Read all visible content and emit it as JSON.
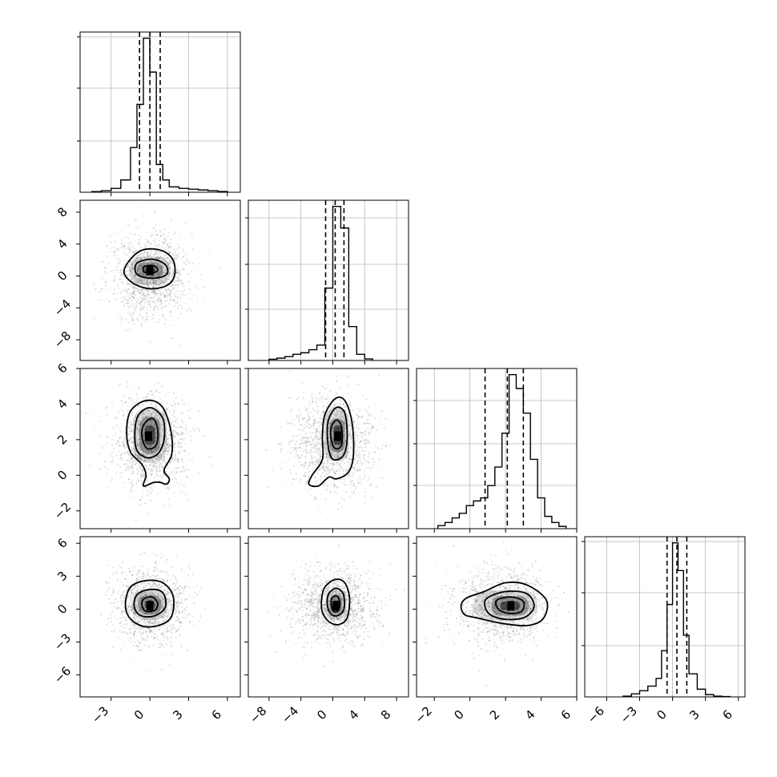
{
  "chart_data": {
    "type": "corner",
    "n_params": 4,
    "grid": true,
    "parameters": [
      {
        "range": [
          -5.4,
          7.0
        ],
        "ticks": [
          -3,
          0,
          3,
          6
        ],
        "tick_labels": [
          "−3",
          "0",
          "3",
          "6"
        ],
        "hist_bins": [
          -4.5,
          -3.75,
          -3.0,
          -2.25,
          -1.5,
          -1.0,
          -0.5,
          0.0,
          0.5,
          1.0,
          1.5,
          2.25,
          3.0,
          3.75,
          4.5,
          5.25,
          6.0
        ],
        "hist_counts": [
          0.4,
          1.0,
          2.5,
          8,
          29,
          57,
          100,
          78,
          18,
          8,
          3.5,
          2.5,
          2,
          1.5,
          1,
          0.5
        ],
        "quantiles": [
          -0.8,
          0.0,
          0.8
        ],
        "hist_ylim": [
          0,
          104
        ],
        "hist_grid": [
          0.32,
          0.65,
          0.97
        ]
      },
      {
        "range": [
          -10.6,
          9.5
        ],
        "ticks": [
          -8,
          -4,
          0,
          4,
          8
        ],
        "tick_labels": [
          "−8",
          "−4",
          "0",
          "4",
          "8"
        ],
        "hist_bins": [
          -8.0,
          -7.0,
          -6.0,
          -5.0,
          -4.0,
          -3.0,
          -2.0,
          -1.0,
          0.0,
          1.0,
          2.0,
          3.0,
          4.0,
          5.0
        ],
        "hist_counts": [
          0.8,
          1.5,
          2.5,
          4,
          5,
          7,
          10,
          47,
          100,
          86,
          22,
          4,
          1
        ],
        "quantiles": [
          -0.9,
          0.3,
          1.4
        ],
        "hist_ylim": [
          0,
          104
        ],
        "hist_grid": [
          0.32,
          0.6,
          0.89
        ]
      },
      {
        "range": [
          -3.0,
          6.0
        ],
        "ticks": [
          -2,
          0,
          2,
          4,
          6
        ],
        "tick_labels": [
          "−2",
          "0",
          "2",
          "4",
          "6"
        ],
        "hist_bins": [
          -1.8,
          -1.4,
          -1.0,
          -0.6,
          -0.2,
          0.2,
          0.6,
          1.0,
          1.4,
          1.8,
          2.2,
          2.6,
          3.0,
          3.4,
          3.8,
          4.2,
          4.6,
          5.0,
          5.4
        ],
        "hist_counts": [
          2,
          4,
          7,
          10,
          15,
          18,
          20,
          28,
          40,
          62,
          100,
          91,
          75,
          45,
          20,
          8,
          4,
          1.5
        ],
        "quantiles": [
          0.85,
          2.1,
          3.0
        ],
        "hist_ylim": [
          0,
          104
        ],
        "hist_grid": [
          0.27,
          0.53,
          0.8
        ]
      },
      {
        "range": [
          -8.0,
          6.6
        ],
        "ticks": [
          -6,
          -3,
          0,
          3,
          6
        ],
        "tick_labels": [
          "−6",
          "−3",
          "0",
          "3",
          "6"
        ],
        "hist_bins": [
          -4.5,
          -3.75,
          -3.0,
          -2.25,
          -1.5,
          -1.0,
          -0.5,
          0.0,
          0.5,
          1.0,
          1.5,
          2.25,
          3.0,
          3.75,
          4.5,
          5.25
        ],
        "hist_counts": [
          0.5,
          2,
          4,
          7,
          12,
          30,
          60,
          100,
          82,
          40,
          15,
          5,
          1.5,
          0.5,
          0.2
        ],
        "quantiles": [
          -0.5,
          0.4,
          1.3
        ],
        "hist_ylim": [
          0,
          104
        ],
        "hist_grid": [
          0.32,
          0.65,
          0.97
        ]
      }
    ],
    "scatter_spread": [
      {
        "center": 0.0,
        "sd": 1.4
      },
      {
        "center": 0.0,
        "sd": 2.6
      },
      {
        "center": 1.8,
        "sd": 1.3
      },
      {
        "center": 0.3,
        "sd": 1.7
      }
    ],
    "pairs": [
      {
        "row": 1,
        "col": 0,
        "peak": [
          0.0,
          0.7
        ],
        "contours": [
          [
            [
              -1.45,
              2.2
            ],
            [
              -0.5,
              3.3
            ],
            [
              0.9,
              3.2
            ],
            [
              1.8,
              2.0
            ],
            [
              1.9,
              0.0
            ],
            [
              1.3,
              -1.2
            ],
            [
              0.0,
              -1.6
            ],
            [
              -1.3,
              -0.9
            ],
            [
              -2.0,
              0.5
            ]
          ],
          [
            [
              -1.0,
              1.6
            ],
            [
              0.2,
              2.1
            ],
            [
              1.2,
              1.4
            ],
            [
              1.3,
              0.2
            ],
            [
              0.2,
              -0.3
            ],
            [
              -1.0,
              0.2
            ]
          ],
          [
            [
              -0.4,
              1.2
            ],
            [
              0.3,
              1.3
            ],
            [
              0.6,
              0.7
            ],
            [
              0.0,
              0.3
            ],
            [
              -0.5,
              0.6
            ]
          ]
        ],
        "levels": [
          [
            -1.6,
            1.6,
            -1.1,
            2.4,
            0.25
          ],
          [
            -1.0,
            1.0,
            -0.3,
            1.7,
            0.5
          ],
          [
            -0.4,
            0.4,
            0.3,
            1.1,
            0.85
          ]
        ]
      },
      {
        "row": 2,
        "col": 0,
        "peak": [
          -0.1,
          2.2
        ],
        "contours": [
          [
            [
              -1.5,
              3.6
            ],
            [
              -0.3,
              4.2
            ],
            [
              0.9,
              3.9
            ],
            [
              1.6,
              2.6
            ],
            [
              1.7,
              1.2
            ],
            [
              1.1,
              0.3
            ],
            [
              1.5,
              -0.2
            ],
            [
              1.3,
              -0.5
            ],
            [
              0.8,
              -0.4
            ],
            [
              0.3,
              -0.4
            ],
            [
              -0.5,
              -0.6
            ],
            [
              -0.3,
              0.0
            ],
            [
              -0.6,
              0.6
            ],
            [
              -1.5,
              1.3
            ],
            [
              -1.8,
              2.4
            ]
          ],
          [
            [
              -1.0,
              3.2
            ],
            [
              0.0,
              3.8
            ],
            [
              1.0,
              3.2
            ],
            [
              1.1,
              2.0
            ],
            [
              0.6,
              1.2
            ],
            [
              -0.3,
              1.0
            ],
            [
              -1.1,
              1.6
            ]
          ],
          [
            [
              -0.5,
              2.8
            ],
            [
              0.2,
              3.2
            ],
            [
              0.6,
              2.6
            ],
            [
              0.5,
              1.7
            ],
            [
              -0.2,
              1.5
            ],
            [
              -0.6,
              2.1
            ]
          ]
        ],
        "levels": [
          [
            -1.3,
            1.3,
            0.7,
            3.8,
            0.25
          ],
          [
            -0.8,
            0.8,
            1.2,
            3.3,
            0.5
          ],
          [
            -0.4,
            0.4,
            1.7,
            2.8,
            0.85
          ]
        ]
      },
      {
        "row": 2,
        "col": 1,
        "peak": [
          0.6,
          2.2
        ],
        "contours": [
          [
            [
              -1.0,
              3.4
            ],
            [
              0.3,
              4.3
            ],
            [
              1.5,
              4.2
            ],
            [
              2.4,
              3.0
            ],
            [
              2.6,
              1.2
            ],
            [
              2.0,
              0.2
            ],
            [
              0.5,
              -0.2
            ],
            [
              -0.5,
              -0.1
            ],
            [
              -1.8,
              -0.6
            ],
            [
              -3.0,
              -0.5
            ],
            [
              -2.6,
              0.0
            ],
            [
              -1.3,
              0.9
            ],
            [
              -1.3,
              2.2
            ]
          ],
          [
            [
              -0.6,
              3.0
            ],
            [
              0.4,
              3.8
            ],
            [
              1.5,
              3.5
            ],
            [
              1.8,
              2.1
            ],
            [
              1.3,
              1.1
            ],
            [
              0.0,
              0.9
            ],
            [
              -0.6,
              1.7
            ]
          ],
          [
            [
              -0.2,
              2.7
            ],
            [
              0.5,
              3.1
            ],
            [
              1.1,
              2.7
            ],
            [
              1.1,
              1.7
            ],
            [
              0.3,
              1.5
            ],
            [
              -0.2,
              2.0
            ]
          ]
        ],
        "levels": [
          [
            -1.0,
            2.0,
            0.8,
            3.8,
            0.25
          ],
          [
            -0.4,
            1.5,
            1.3,
            3.2,
            0.5
          ],
          [
            0.1,
            1.1,
            1.7,
            2.8,
            0.85
          ]
        ]
      },
      {
        "row": 3,
        "col": 0,
        "peak": [
          0.0,
          0.3
        ],
        "contours": [
          [
            [
              -1.5,
              2.0
            ],
            [
              -0.3,
              2.6
            ],
            [
              1.0,
              2.4
            ],
            [
              1.8,
              1.2
            ],
            [
              1.7,
              -0.6
            ],
            [
              0.9,
              -1.4
            ],
            [
              -0.4,
              -1.6
            ],
            [
              -1.5,
              -0.9
            ],
            [
              -1.9,
              0.4
            ]
          ],
          [
            [
              -1.0,
              1.3
            ],
            [
              0.0,
              1.8
            ],
            [
              1.0,
              1.5
            ],
            [
              1.2,
              0.2
            ],
            [
              0.4,
              -0.6
            ],
            [
              -0.7,
              -0.6
            ],
            [
              -1.2,
              0.2
            ]
          ],
          [
            [
              -0.5,
              0.9
            ],
            [
              0.2,
              1.1
            ],
            [
              0.6,
              0.5
            ],
            [
              0.4,
              -0.1
            ],
            [
              -0.3,
              -0.2
            ],
            [
              -0.6,
              0.3
            ]
          ]
        ],
        "levels": [
          [
            -1.4,
            1.4,
            -1.0,
            1.8,
            0.25
          ],
          [
            -0.9,
            0.9,
            -0.5,
            1.3,
            0.5
          ],
          [
            -0.4,
            0.4,
            0.0,
            0.8,
            0.85
          ]
        ]
      },
      {
        "row": 3,
        "col": 1,
        "peak": [
          0.4,
          0.3
        ],
        "contours": [
          [
            [
              -1.0,
              2.0
            ],
            [
              0.3,
              2.7
            ],
            [
              1.5,
              2.4
            ],
            [
              2.1,
              1.0
            ],
            [
              1.8,
              -0.8
            ],
            [
              0.8,
              -1.4
            ],
            [
              -0.4,
              -1.2
            ],
            [
              -1.3,
              -0.3
            ],
            [
              -1.4,
              0.9
            ]
          ],
          [
            [
              -0.5,
              1.4
            ],
            [
              0.4,
              1.9
            ],
            [
              1.3,
              1.4
            ],
            [
              1.4,
              0.0
            ],
            [
              0.6,
              -0.6
            ],
            [
              -0.3,
              -0.4
            ],
            [
              -0.7,
              0.5
            ]
          ],
          [
            [
              -0.1,
              1.0
            ],
            [
              0.5,
              1.2
            ],
            [
              0.9,
              0.6
            ],
            [
              0.7,
              -0.1
            ],
            [
              0.1,
              -0.2
            ],
            [
              -0.2,
              0.4
            ]
          ]
        ],
        "levels": [
          [
            -0.9,
            1.7,
            -1.0,
            1.8,
            0.25
          ],
          [
            -0.4,
            1.2,
            -0.5,
            1.3,
            0.5
          ],
          [
            0.0,
            0.8,
            0.0,
            0.8,
            0.85
          ]
        ]
      },
      {
        "row": 3,
        "col": 2,
        "peak": [
          2.3,
          0.3
        ],
        "contours": [
          [
            [
              -0.2,
              1.0
            ],
            [
              0.8,
              1.6
            ],
            [
              2.0,
              2.4
            ],
            [
              3.2,
              2.2
            ],
            [
              4.3,
              0.8
            ],
            [
              4.1,
              -0.9
            ],
            [
              3.2,
              -1.5
            ],
            [
              1.8,
              -1.3
            ],
            [
              0.4,
              -0.8
            ],
            [
              -0.3,
              -0.5
            ],
            [
              -0.5,
              0.3
            ]
          ],
          [
            [
              0.9,
              0.9
            ],
            [
              2.0,
              1.6
            ],
            [
              3.2,
              1.4
            ],
            [
              3.6,
              0.2
            ],
            [
              3.0,
              -0.8
            ],
            [
              1.8,
              -0.9
            ],
            [
              1.0,
              -0.3
            ]
          ],
          [
            [
              1.5,
              0.8
            ],
            [
              2.3,
              1.1
            ],
            [
              3.0,
              0.7
            ],
            [
              2.9,
              -0.2
            ],
            [
              2.2,
              -0.4
            ],
            [
              1.6,
              0.0
            ]
          ]
        ],
        "levels": [
          [
            0.2,
            3.8,
            -1.0,
            1.7,
            0.2
          ],
          [
            1.2,
            3.3,
            -0.6,
            1.2,
            0.5
          ],
          [
            1.7,
            2.8,
            -0.1,
            0.7,
            0.85
          ]
        ]
      }
    ]
  }
}
